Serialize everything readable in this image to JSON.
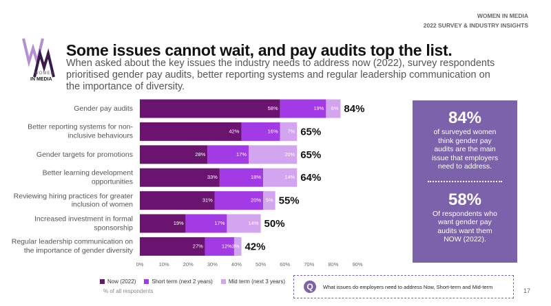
{
  "header": {
    "line1": "WOMEN IN MEDIA",
    "line2": "2022 SURVEY & INDUSTRY INSIGHTS"
  },
  "logo": {
    "line1": "WOMEN",
    "line2": "IN MEDIA"
  },
  "chart_data": {
    "type": "bar",
    "orientation": "horizontal",
    "stacked": true,
    "title": "Some issues cannot wait, and pay audits top the list.",
    "subtitle": "When asked about the key issues the industry needs to address now (2022), survey respondents prioritised gender pay audits, better reporting systems and regular leadership communication on the importance of diversity.",
    "categories": [
      "Gender pay audits",
      "Better reporting systems for non-inclusive behaviours",
      "Gender targets for promotions",
      "Better learning development opportunities",
      "Reviewing hiring practices for greater inclusion of women",
      "Increased investment in formal sponsorship",
      "Regular leadership communication on the importance of gender diversity"
    ],
    "series": [
      {
        "name": "Now (2022)",
        "color": "#6a1470",
        "values": [
          58,
          42,
          28,
          33,
          31,
          19,
          27
        ],
        "value_labels": [
          "58%",
          "42%",
          "28%",
          "33%",
          "31%",
          "19%",
          "27%"
        ]
      },
      {
        "name": "Short term (next 2 years)",
        "color": "#a23be6",
        "values": [
          19,
          16,
          17,
          18,
          20,
          17,
          12
        ],
        "value_labels": [
          "19%",
          "16%",
          "17%",
          "18%",
          "20%",
          "17%",
          "12%"
        ]
      },
      {
        "name": "Mid term (next 3 years)",
        "color": "#d3a4ef",
        "values": [
          6,
          7,
          20,
          14,
          5,
          14,
          3
        ],
        "value_labels": [
          "6%",
          "7%",
          "20%",
          "14%",
          "5%",
          "14%",
          "3%"
        ]
      }
    ],
    "totals": [
      84,
      65,
      65,
      64,
      55,
      50,
      42
    ],
    "total_labels": [
      "84%",
      "65%",
      "65%",
      "64%",
      "55%",
      "50%",
      "42%"
    ],
    "xlim": [
      0,
      90
    ],
    "xticks": [
      {
        "value": 0,
        "label": "0%"
      },
      {
        "value": 10,
        "label": "10%"
      },
      {
        "value": 20,
        "label": "20%"
      },
      {
        "value": 30,
        "label": "30%"
      },
      {
        "value": 40,
        "label": "40%"
      },
      {
        "value": 50,
        "label": "50%"
      },
      {
        "value": 60,
        "label": "60%"
      },
      {
        "value": 70,
        "label": "70%"
      },
      {
        "value": 80,
        "label": "80%"
      },
      {
        "value": 90,
        "label": "90%"
      }
    ],
    "note": "% of all respondents"
  },
  "callout": {
    "stat1": "84%",
    "text1": "of surveyed women think gender pay audits are the main issue that employers need to address.",
    "stat2": "58%",
    "text2": "Of respondents who want gender pay audits want them NOW (2022)."
  },
  "question": "What issues do employers need to address Now, Short-term and Mid-term",
  "page_number": "17"
}
